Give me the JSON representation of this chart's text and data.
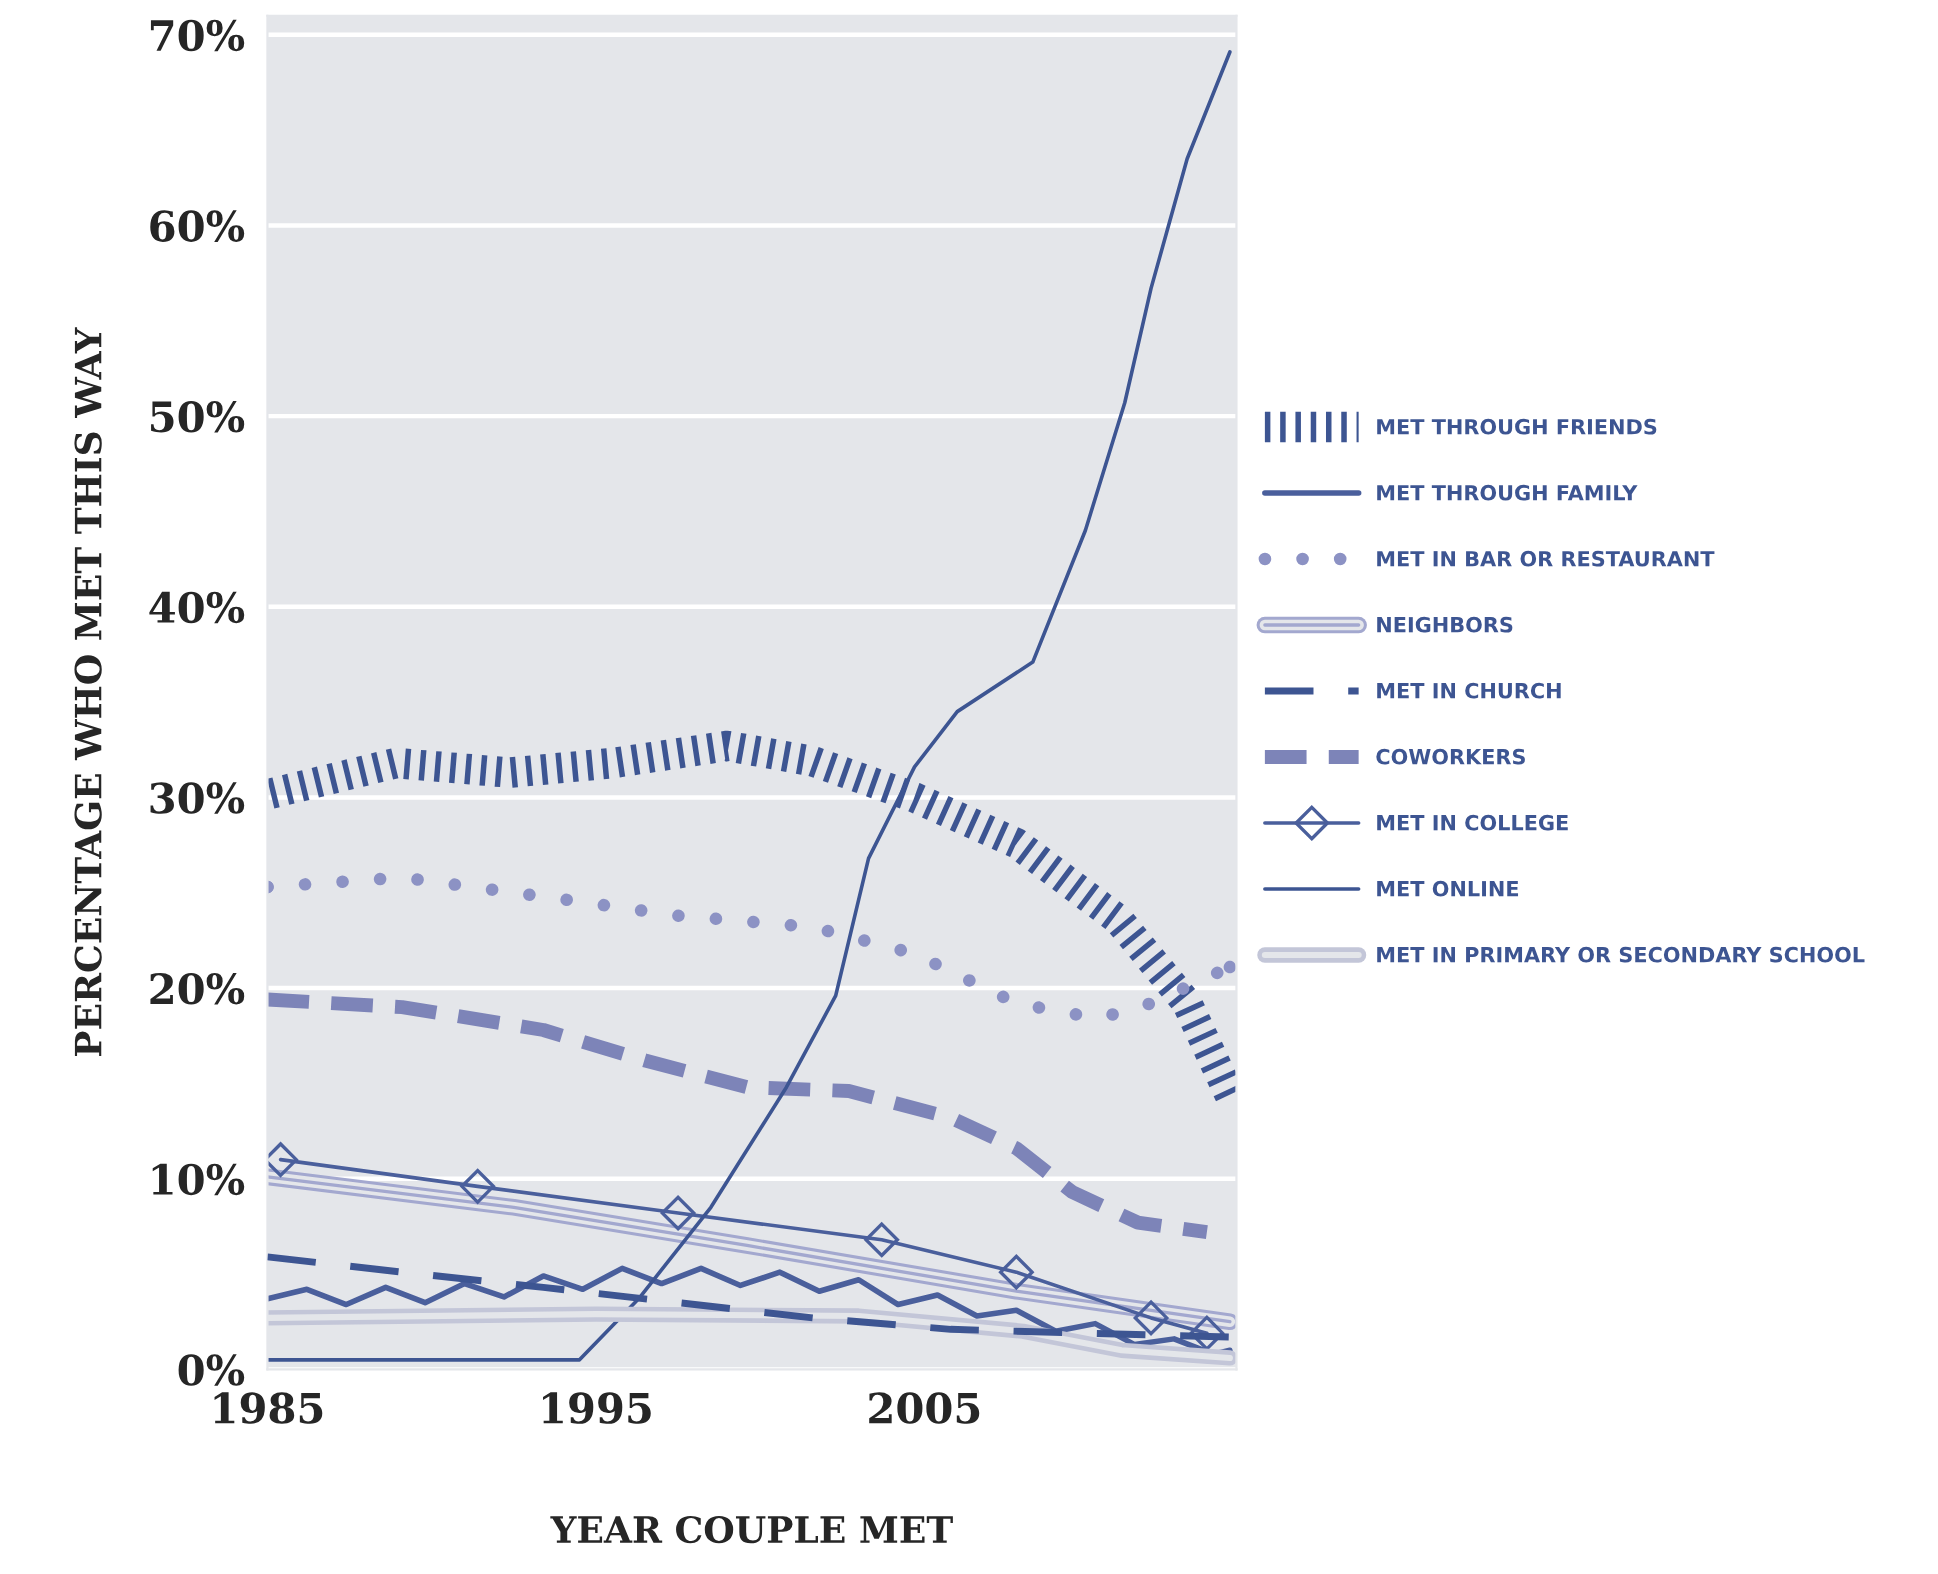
{
  "chart_data": {
    "type": "line",
    "xlabel": "YEAR COUPLE MET",
    "ylabel": "PERCENTAGE WHO MET THIS WAY",
    "xlim": [
      1985,
      2014.5
    ],
    "xticks": [
      1985,
      1995,
      2005
    ],
    "ylim": [
      0,
      71
    ],
    "yticks": [
      {
        "value": 0,
        "label": "0%"
      },
      {
        "value": 10,
        "label": "10%"
      },
      {
        "value": 20,
        "label": "20%"
      },
      {
        "value": 30,
        "label": "30%"
      },
      {
        "value": 40,
        "label": "40%"
      },
      {
        "value": 50,
        "label": "50%"
      },
      {
        "value": 60,
        "label": "60%"
      },
      {
        "value": 70,
        "label": "70%"
      }
    ],
    "grid": "y",
    "legend": "right",
    "series": [
      {
        "name": "MET THROUGH FRIENDS",
        "color": "#3d5592",
        "line_style": "dotted",
        "x": [
          1985.1,
          1988.9,
          1992.4,
          1995.5,
          1999.0,
          2001.6,
          2004.7,
          2007.8,
          2010.9,
          2013.0,
          2014.3
        ],
        "values": [
          30.2,
          31.8,
          31.3,
          31.8,
          32.7,
          31.9,
          30.0,
          27.6,
          23.6,
          19.2,
          14.4
        ]
      },
      {
        "name": "MET THROUGH FAMILY",
        "color": "#4a5f9c",
        "line_style": "solid",
        "x": [
          1985,
          1986.2,
          1987.4,
          1988.6,
          1989.8,
          1991.0,
          1992.2,
          1993.4,
          1994.6,
          1995.8,
          1997.0,
          1998.2,
          1999.4,
          2000.6,
          2001.8,
          2003.0,
          2004.2,
          2005.4,
          2006.6,
          2007.8,
          2009.0,
          2010.2,
          2011.4,
          2012.6,
          2013.8,
          2014.3
        ],
        "values": [
          3.7,
          4.2,
          3.4,
          4.3,
          3.5,
          4.5,
          3.8,
          4.9,
          4.2,
          5.3,
          4.5,
          5.3,
          4.4,
          5.1,
          4.1,
          4.7,
          3.4,
          3.9,
          2.8,
          3.1,
          2.0,
          2.4,
          1.3,
          1.6,
          0.8,
          1.0
        ]
      },
      {
        "name": "MET IN BAR OR RESTAURANT",
        "color": "#8c92c4",
        "line_style": "dotted",
        "x": [
          1985,
          1989.1,
          1993.4,
          1997.5,
          2001.6,
          2004.7,
          2007.8,
          2010.3,
          2011.9,
          2014.3
        ],
        "values": [
          25.3,
          25.8,
          24.8,
          23.8,
          23.2,
          21.8,
          19.2,
          18.4,
          19.2,
          21.1
        ]
      },
      {
        "name": "NEIGHBORS",
        "color": "#a3a8cf",
        "line_style": "solid",
        "x": [
          1985,
          1992.5,
          1999.6,
          2007.8,
          2014.3
        ],
        "values": [
          10.1,
          8.5,
          6.5,
          4.1,
          2.5
        ]
      },
      {
        "name": "MET IN CHURCH",
        "color": "#3d5592",
        "line_style": "dashed",
        "x": [
          1985,
          1989.1,
          1993.4,
          1997.5,
          2001.6,
          2005.8,
          2009.9,
          2014.3
        ],
        "values": [
          5.9,
          5.1,
          4.3,
          3.5,
          2.7,
          2.1,
          1.9,
          1.7
        ]
      },
      {
        "name": "COWORKERS",
        "color": "#7d84b8",
        "line_style": "dashed",
        "x": [
          1985,
          1989.1,
          1993.4,
          1996.5,
          1999.6,
          2002.7,
          2005.8,
          2007.8,
          2009.5,
          2011.5,
          2013.6
        ],
        "values": [
          19.4,
          19.0,
          17.8,
          16.2,
          14.8,
          14.6,
          13.2,
          11.6,
          9.3,
          7.7,
          7.2
        ]
      },
      {
        "name": "MET IN COLLEGE",
        "color": "#4a5f9c",
        "line_style": "solid",
        "marker": "diamond",
        "x": [
          1985.4,
          1991.4,
          1997.5,
          2003.7,
          2007.8,
          2011.9,
          2013.6
        ],
        "values": [
          11.0,
          9.6,
          8.2,
          6.8,
          5.1,
          2.7,
          1.9
        ]
      },
      {
        "name": "MET ONLINE",
        "color": "#3d5592",
        "line_style": "solid",
        "x": [
          1985,
          1994.5,
          1996.3,
          1998.5,
          2000.8,
          2002.3,
          2003.3,
          2004.7,
          2006.0,
          2008.3,
          2009.9,
          2011.1,
          2011.9,
          2013.0,
          2014.3
        ],
        "values": [
          0.5,
          0.5,
          3.7,
          8.5,
          14.8,
          19.6,
          26.8,
          31.6,
          34.5,
          37.1,
          44.0,
          50.7,
          56.7,
          63.5,
          69.1
        ]
      },
      {
        "name": "MET IN PRIMARY OR SECONDARY SCHOOL",
        "color": "#c3c6d8",
        "line_style": "solid",
        "x": [
          1985,
          1995,
          2003,
          2008,
          2011,
          2014.3
        ],
        "values": [
          2.7,
          2.9,
          2.8,
          2.0,
          1.0,
          0.6
        ]
      }
    ]
  }
}
